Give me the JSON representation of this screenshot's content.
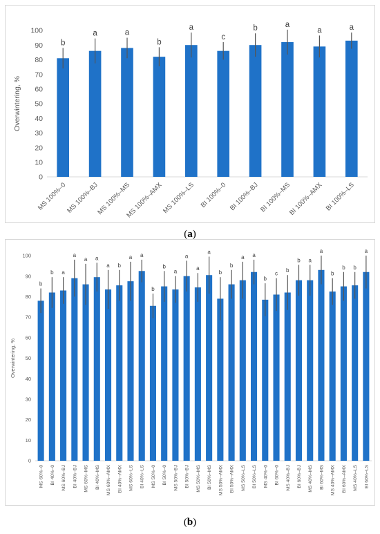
{
  "colors": {
    "bar": "#1f72c8",
    "error": "#555555",
    "axis": "#d9d9d9",
    "text": "#595959"
  },
  "captions": {
    "a": {
      "open": "(",
      "letter": "a",
      "close": ")"
    },
    "b": {
      "open": "(",
      "letter": "b",
      "close": ")"
    }
  },
  "chart_data": [
    {
      "type": "bar",
      "ylabel": "Overwintering, %",
      "ylim": [
        0,
        100
      ],
      "yticks": [
        0,
        10,
        20,
        30,
        40,
        50,
        60,
        70,
        80,
        90,
        100
      ],
      "categories": [
        "MS 100%–0",
        "MS 100%–BJ",
        "MS 100%–MS",
        "MS 100%–AMX",
        "MS 100%–LS",
        "BI 100%–0",
        "BI 100%–BJ",
        "BI 100%–MS",
        "BI 100%–AMX",
        "BI 100%–LS"
      ],
      "values": [
        81,
        86,
        88,
        82,
        90,
        86,
        90,
        92,
        89,
        93
      ],
      "errors": [
        7,
        8.5,
        7,
        6.5,
        8.5,
        6,
        8,
        8.5,
        7.5,
        5.5
      ],
      "letters": [
        "b",
        "a",
        "a",
        "b",
        "a",
        "c",
        "b",
        "a",
        "a",
        "a"
      ]
    },
    {
      "type": "bar",
      "ylabel": "Overwintering, %",
      "ylim": [
        0,
        100
      ],
      "yticks": [
        0,
        10,
        20,
        30,
        40,
        50,
        60,
        70,
        80,
        90,
        100
      ],
      "categories": [
        "MS 60%–0",
        "BI 40%–0",
        "MS 60%–BJ",
        "BI 40%–BJ",
        "MS 60%–MS",
        "BI 40%–MS",
        "MS 60%–AMX",
        "BI 40%–AMX",
        "MS 60%–LS",
        "BI 40%–LS",
        "MS 50%–0",
        "BI 50%–0",
        "MS 50%–BJ",
        "BI 50%–BJ",
        "MS 50%–MS",
        "BI 50%–MS",
        "MS 50%–AMX",
        "BI 50%–AMX",
        "MS 50%–LS",
        "BI 50%–LS",
        "MS 40%–0",
        "BI 60%–0",
        "MS 40%–BJ",
        "BI 60%–BJ",
        "MS 40%–MS",
        "BI 60%–MS",
        "MS 40%–AMX",
        "BI 60%–AMX",
        "MS 40%–LS",
        "BI 60%–LS"
      ],
      "values": [
        78,
        82,
        83,
        89,
        86,
        89.5,
        83.5,
        85.5,
        87.5,
        92.5,
        75.5,
        85,
        83.5,
        90,
        84.5,
        90.5,
        79,
        86,
        88,
        92,
        78.5,
        81,
        82,
        88,
        88,
        93,
        82.5,
        85,
        85.5,
        92
      ],
      "errors": [
        6,
        7.5,
        6.5,
        9,
        10,
        7,
        9.5,
        7.5,
        9.5,
        5.5,
        6,
        7.5,
        6.5,
        7.5,
        7,
        9,
        10.5,
        7,
        9,
        6,
        8,
        8,
        8.5,
        7.5,
        7.5,
        7,
        6.5,
        7,
        6.5,
        8
      ],
      "letters": [
        "b",
        "b",
        "a",
        "a",
        "a",
        "a",
        "a",
        "b",
        "a",
        "a",
        "b",
        "b",
        "a",
        "a",
        "a",
        "a",
        "b",
        "b",
        "a",
        "a",
        "b",
        "c",
        "b",
        "b",
        "a",
        "a",
        "b",
        "b",
        "b",
        "a"
      ]
    }
  ]
}
